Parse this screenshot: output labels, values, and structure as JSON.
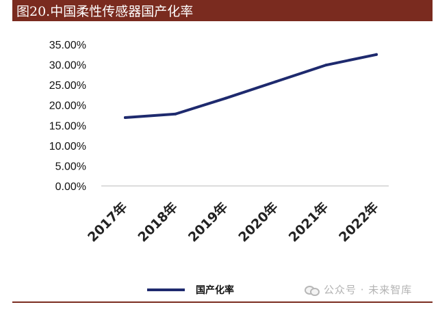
{
  "header": {
    "title": "图20.中国柔性传感器国产化率"
  },
  "colors": {
    "header_bg": "#7a2b1f",
    "series_line": "#1e2a6e",
    "rule": "#7a2b1f"
  },
  "chart_data": {
    "type": "line",
    "title": "",
    "xlabel": "",
    "ylabel": "",
    "categories": [
      "2017年",
      "2018年",
      "2019年",
      "2020年",
      "2021年",
      "2022年"
    ],
    "series": [
      {
        "name": "国产化率",
        "values": [
          16.9,
          17.8,
          21.7,
          25.8,
          29.9,
          32.5
        ]
      }
    ],
    "ylim": [
      0,
      35
    ],
    "yticks": [
      "0.00%",
      "5.00%",
      "10.00%",
      "15.00%",
      "20.00%",
      "25.00%",
      "30.00%",
      "35.00%"
    ],
    "y_step": 5,
    "grid": false,
    "legend_position": "bottom"
  },
  "watermark": {
    "text": "公众号 · 未来智库",
    "icon": "wechat-icon"
  }
}
